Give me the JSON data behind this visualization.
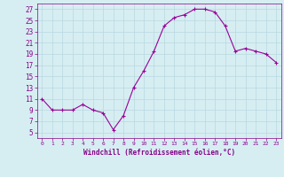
{
  "x": [
    0,
    1,
    2,
    3,
    4,
    5,
    6,
    7,
    8,
    9,
    10,
    11,
    12,
    13,
    14,
    15,
    16,
    17,
    18,
    19,
    20,
    21,
    22,
    23
  ],
  "y": [
    11,
    9,
    9,
    9,
    10,
    9,
    8.5,
    5.5,
    8,
    13,
    16,
    19.5,
    24,
    25.5,
    26,
    27,
    27,
    26.5,
    24,
    19.5,
    20,
    19.5,
    19,
    17.5
  ],
  "line_color": "#990099",
  "marker": "+",
  "marker_color": "#990099",
  "bg_color": "#d6eef2",
  "grid_color": "#b8d8e0",
  "xlabel": "Windchill (Refroidissement éolien,°C)",
  "xlabel_color": "#880088",
  "tick_color": "#880088",
  "spine_color": "#880088",
  "ylim": [
    4,
    28
  ],
  "yticks": [
    5,
    7,
    9,
    11,
    13,
    15,
    17,
    19,
    21,
    23,
    25,
    27
  ],
  "xticks": [
    0,
    1,
    2,
    3,
    4,
    5,
    6,
    7,
    8,
    9,
    10,
    11,
    12,
    13,
    14,
    15,
    16,
    17,
    18,
    19,
    20,
    21,
    22,
    23
  ],
  "xlim": [
    -0.5,
    23.5
  ],
  "figsize": [
    3.2,
    2.0
  ],
  "dpi": 100
}
